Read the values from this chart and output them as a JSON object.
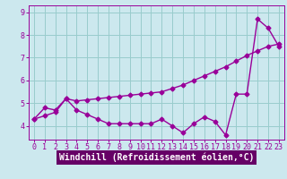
{
  "xlabel": "Windchill (Refroidissement éolien,°C)",
  "bg_color": "#cce8ee",
  "line_color": "#990099",
  "grid_color": "#99cccc",
  "xlabel_bg": "#660066",
  "xlabel_fg": "#ffffff",
  "x_values": [
    0,
    1,
    2,
    3,
    4,
    5,
    6,
    7,
    8,
    9,
    10,
    11,
    12,
    13,
    14,
    15,
    16,
    17,
    18,
    19,
    20,
    21,
    22,
    23
  ],
  "y_actual": [
    4.3,
    4.8,
    4.7,
    5.2,
    4.7,
    4.5,
    4.3,
    4.1,
    4.1,
    4.1,
    4.1,
    4.1,
    4.3,
    4.0,
    3.7,
    4.1,
    4.4,
    4.2,
    3.6,
    5.4,
    5.4,
    8.7,
    8.3,
    7.5
  ],
  "y_trend": [
    4.3,
    4.45,
    4.6,
    5.2,
    5.1,
    5.15,
    5.2,
    5.25,
    5.3,
    5.35,
    5.4,
    5.45,
    5.5,
    5.65,
    5.8,
    6.0,
    6.2,
    6.4,
    6.6,
    6.85,
    7.1,
    7.3,
    7.5,
    7.6
  ],
  "xlim": [
    -0.5,
    23.5
  ],
  "ylim": [
    3.4,
    9.3
  ],
  "yticks": [
    4,
    5,
    6,
    7,
    8,
    9
  ],
  "xticks": [
    0,
    1,
    2,
    3,
    4,
    5,
    6,
    7,
    8,
    9,
    10,
    11,
    12,
    13,
    14,
    15,
    16,
    17,
    18,
    19,
    20,
    21,
    22,
    23
  ],
  "tick_fontsize": 6.0,
  "xlabel_fontsize": 7.0,
  "marker_size": 2.5,
  "linewidth": 1.0
}
